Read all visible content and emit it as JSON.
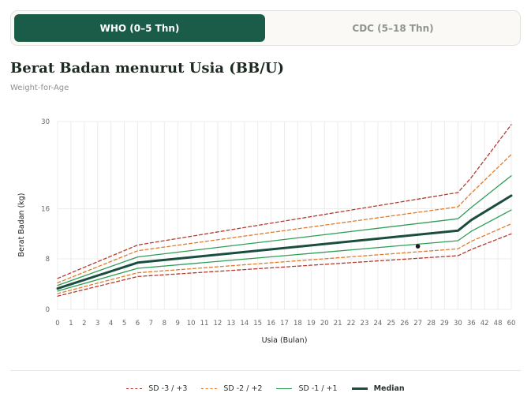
{
  "tabs": [
    {
      "label": "WHO (0–5 Thn)",
      "active": true
    },
    {
      "label": "CDC (5–18 Thn)",
      "active": false
    }
  ],
  "header": {
    "title": "Berat Badan menurut Usia (BB/U)",
    "subtitle": "Weight-for-Age"
  },
  "colors": {
    "sd3": "#b33a2e",
    "sd2": "#e07b2a",
    "sd1": "#2e9e57",
    "median": "#1b4d3e",
    "grid": "#ececec",
    "point": "#1a1a1a"
  },
  "chart_data": {
    "type": "line",
    "xlabel": "Usia (Bulan)",
    "ylabel": "Berat Badan (kg)",
    "x_ticks": [
      0,
      1,
      2,
      3,
      4,
      5,
      6,
      7,
      8,
      9,
      10,
      11,
      12,
      13,
      14,
      15,
      16,
      17,
      18,
      19,
      20,
      21,
      22,
      23,
      24,
      25,
      26,
      27,
      28,
      29,
      30,
      36,
      42,
      48,
      60
    ],
    "y_ticks": [
      0,
      8,
      16,
      30
    ],
    "ylim": [
      0,
      30
    ],
    "grid": true,
    "legend_position": "bottom",
    "x": [
      0,
      6,
      30,
      36,
      60
    ],
    "series": [
      {
        "key": "sd_p3",
        "group": "sd3",
        "dashed": true,
        "values": [
          4.9,
          10.2,
          18.6,
          21.0,
          29.5
        ]
      },
      {
        "key": "sd_p2",
        "group": "sd2",
        "dashed": true,
        "values": [
          4.2,
          9.3,
          16.3,
          18.5,
          24.7
        ]
      },
      {
        "key": "sd_p1",
        "group": "sd1",
        "dashed": false,
        "values": [
          3.8,
          8.3,
          14.4,
          16.2,
          21.3
        ]
      },
      {
        "key": "median",
        "group": "median",
        "dashed": false,
        "values": [
          3.3,
          7.4,
          12.5,
          14.2,
          18.1
        ]
      },
      {
        "key": "sd_m1",
        "group": "sd1",
        "dashed": false,
        "values": [
          2.9,
          6.5,
          10.9,
          12.4,
          15.8
        ]
      },
      {
        "key": "sd_m2",
        "group": "sd2",
        "dashed": false,
        "dashed_override": true,
        "values": [
          2.5,
          5.8,
          9.6,
          10.8,
          13.6
        ]
      },
      {
        "key": "sd_m3",
        "group": "sd3",
        "dashed": true,
        "values": [
          2.1,
          5.2,
          8.5,
          9.5,
          12.0
        ]
      }
    ],
    "points": [
      {
        "x": 27,
        "y": 10.0
      }
    ],
    "legend": [
      {
        "label": "SD -3 / +3",
        "group": "sd3",
        "dashed": true
      },
      {
        "label": "SD -2 / +2",
        "group": "sd2",
        "dashed": true
      },
      {
        "label": "SD -1 / +1",
        "group": "sd1",
        "dashed": false
      },
      {
        "label": "Median",
        "group": "median",
        "dashed": false
      }
    ]
  }
}
